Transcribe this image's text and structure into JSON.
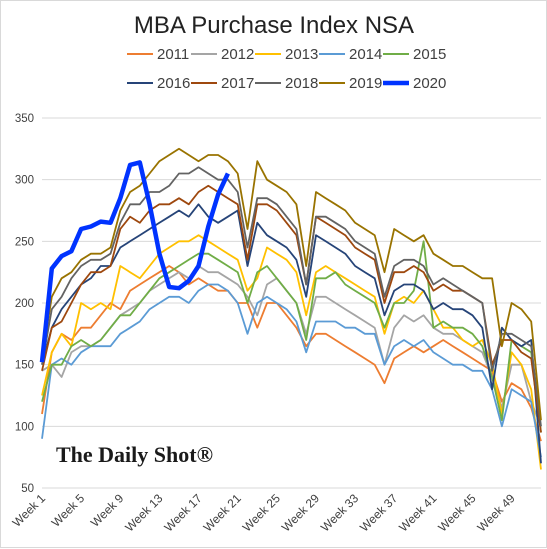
{
  "chart_data": {
    "type": "line",
    "title": "MBA Purchase Index NSA",
    "xlabel": "",
    "ylabel": "",
    "ylim": [
      50,
      350
    ],
    "yticks": [
      50,
      100,
      150,
      200,
      250,
      300,
      350
    ],
    "xlim": [
      1,
      52
    ],
    "xtick_weeks": [
      1,
      5,
      9,
      13,
      17,
      21,
      25,
      29,
      33,
      37,
      41,
      45,
      49
    ],
    "xtick_labels": [
      "Week 1",
      "Week 5",
      "Week 9",
      "Week 13",
      "Week 17",
      "Week 21",
      "Week 25",
      "Week 29",
      "Week 33",
      "Week 37",
      "Week 41",
      "Week 45",
      "Week 49"
    ],
    "grid": "horizontal",
    "legend_position": "top",
    "watermark": "The Daily Shot®",
    "series": [
      {
        "name": "2011",
        "color": "#ed7d31",
        "values": [
          110,
          160,
          175,
          170,
          180,
          180,
          190,
          200,
          195,
          210,
          215,
          220,
          225,
          230,
          225,
          215,
          220,
          215,
          210,
          210,
          200,
          200,
          180,
          200,
          200,
          190,
          180,
          165,
          175,
          175,
          170,
          165,
          160,
          155,
          150,
          135,
          155,
          160,
          165,
          160,
          165,
          170,
          165,
          160,
          155,
          150,
          145,
          120,
          135,
          130,
          115,
          88
        ]
      },
      {
        "name": "2012",
        "color": "#a5a5a5",
        "values": [
          145,
          150,
          140,
          160,
          165,
          165,
          170,
          180,
          190,
          195,
          200,
          210,
          215,
          220,
          225,
          220,
          230,
          225,
          225,
          220,
          215,
          205,
          190,
          215,
          220,
          210,
          200,
          175,
          205,
          205,
          200,
          195,
          190,
          185,
          180,
          150,
          180,
          190,
          185,
          190,
          180,
          175,
          175,
          170,
          165,
          160,
          140,
          115,
          150,
          150,
          120,
          100
        ]
      },
      {
        "name": "2013",
        "color": "#ffc000",
        "values": [
          125,
          160,
          175,
          165,
          200,
          195,
          200,
          195,
          230,
          225,
          220,
          230,
          240,
          245,
          250,
          250,
          255,
          250,
          245,
          240,
          235,
          210,
          220,
          245,
          240,
          235,
          225,
          190,
          225,
          230,
          225,
          220,
          215,
          210,
          205,
          175,
          200,
          205,
          200,
          210,
          195,
          180,
          180,
          170,
          165,
          170,
          150,
          110,
          160,
          150,
          130,
          65
        ]
      },
      {
        "name": "2014",
        "color": "#5b9bd5",
        "values": [
          90,
          150,
          155,
          150,
          160,
          165,
          165,
          165,
          175,
          180,
          185,
          195,
          200,
          205,
          205,
          200,
          210,
          215,
          215,
          210,
          200,
          175,
          200,
          205,
          200,
          195,
          185,
          160,
          185,
          185,
          185,
          180,
          180,
          175,
          175,
          150,
          165,
          170,
          165,
          170,
          160,
          155,
          150,
          150,
          145,
          145,
          130,
          100,
          130,
          125,
          120,
          75
        ]
      },
      {
        "name": "2015",
        "color": "#70ad47",
        "values": [
          120,
          150,
          150,
          165,
          170,
          165,
          170,
          180,
          190,
          190,
          200,
          210,
          220,
          225,
          230,
          235,
          240,
          240,
          235,
          230,
          225,
          200,
          225,
          230,
          220,
          210,
          200,
          170,
          220,
          220,
          225,
          215,
          210,
          205,
          200,
          180,
          200,
          200,
          210,
          250,
          180,
          185,
          180,
          180,
          175,
          165,
          140,
          105,
          170,
          165,
          160,
          95
        ]
      },
      {
        "name": "2016",
        "color": "#264478",
        "values": [
          150,
          180,
          195,
          205,
          215,
          220,
          230,
          230,
          245,
          250,
          255,
          260,
          265,
          270,
          275,
          270,
          280,
          270,
          265,
          270,
          275,
          230,
          265,
          255,
          250,
          245,
          235,
          205,
          255,
          250,
          245,
          240,
          230,
          225,
          220,
          190,
          210,
          215,
          215,
          210,
          195,
          200,
          195,
          195,
          190,
          180,
          130,
          180,
          170,
          165,
          170,
          70
        ]
      },
      {
        "name": "2017",
        "color": "#9e480e",
        "values": [
          145,
          180,
          185,
          200,
          215,
          225,
          225,
          230,
          260,
          270,
          265,
          275,
          280,
          280,
          285,
          280,
          290,
          295,
          290,
          285,
          280,
          235,
          280,
          280,
          275,
          265,
          255,
          215,
          270,
          265,
          260,
          255,
          245,
          240,
          235,
          200,
          225,
          225,
          230,
          225,
          210,
          215,
          210,
          210,
          205,
          200,
          150,
          170,
          170,
          160,
          155,
          95
        ]
      },
      {
        "name": "2018",
        "color": "#636363",
        "values": [
          150,
          195,
          205,
          220,
          230,
          235,
          235,
          240,
          265,
          280,
          280,
          290,
          290,
          295,
          305,
          305,
          310,
          305,
          300,
          300,
          290,
          245,
          285,
          285,
          280,
          270,
          260,
          215,
          270,
          270,
          265,
          260,
          250,
          245,
          240,
          205,
          230,
          235,
          235,
          230,
          215,
          220,
          215,
          210,
          205,
          200,
          145,
          175,
          175,
          170,
          165,
          100
        ]
      },
      {
        "name": "2019",
        "color": "#997300",
        "values": [
          155,
          205,
          220,
          225,
          235,
          240,
          240,
          245,
          275,
          290,
          295,
          305,
          315,
          320,
          325,
          320,
          315,
          320,
          320,
          315,
          305,
          260,
          315,
          300,
          295,
          290,
          280,
          230,
          290,
          285,
          280,
          275,
          265,
          260,
          255,
          225,
          260,
          255,
          250,
          255,
          240,
          235,
          230,
          230,
          225,
          220,
          220,
          165,
          200,
          195,
          185,
          105
        ]
      },
      {
        "name": "2020",
        "color": "#0033ff",
        "values": [
          152,
          228,
          238,
          242,
          260,
          262,
          266,
          265,
          285,
          312,
          314,
          280,
          240,
          213,
          212,
          218,
          230,
          262,
          288,
          305
        ]
      }
    ]
  }
}
